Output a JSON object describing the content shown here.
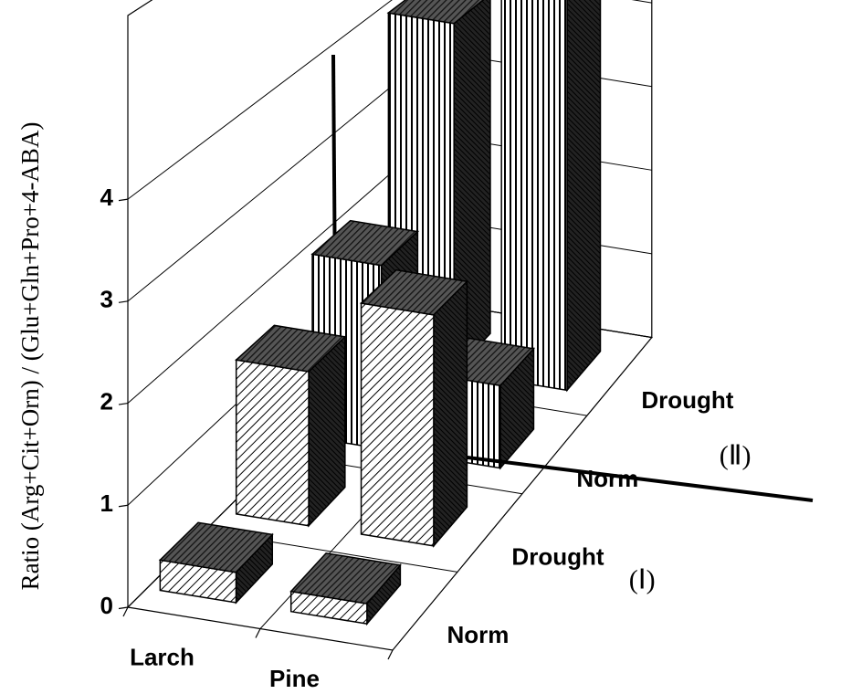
{
  "chart_data": {
    "type": "bar3d",
    "y_label": "Ratio (Arg+Cit+Orn) / (Glu+Gln+Pro+4-ABA)",
    "categories": [
      "Larch",
      "Pine"
    ],
    "series": [
      {
        "name": "Norm",
        "values": [
          0.3,
          0.2
        ]
      },
      {
        "name": "Drought",
        "values": [
          1.6,
          2.4
        ]
      },
      {
        "name": "Norm",
        "values": [
          2.0,
          0.9
        ]
      },
      {
        "name": "Drought",
        "values": [
          4.0,
          5.0
        ]
      }
    ],
    "group_labels": [
      "(Ⅰ)",
      "(Ⅱ)"
    ],
    "ylim": [
      0,
      5.8
    ],
    "yticks": [
      0,
      1,
      2,
      3,
      4
    ],
    "grid": true
  }
}
